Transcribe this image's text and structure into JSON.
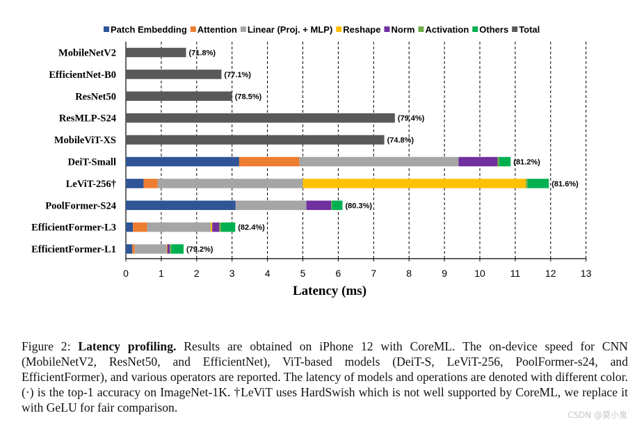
{
  "chart_data": {
    "type": "bar",
    "orientation": "horizontal",
    "stacked": true,
    "xlabel": "Latency (ms)",
    "xlim": [
      0,
      13
    ],
    "xticks": [
      0,
      1,
      2,
      3,
      4,
      5,
      6,
      7,
      8,
      9,
      10,
      11,
      12,
      13
    ],
    "grid": "vertical dashed at each 1 ms",
    "legend_position": "top",
    "legend": [
      {
        "name": "Patch Embedding",
        "color": "#2f5597"
      },
      {
        "name": "Attention",
        "color": "#ed7d31"
      },
      {
        "name": "Linear (Proj. + MLP)",
        "color": "#a5a5a5"
      },
      {
        "name": "Reshape",
        "color": "#ffc000"
      },
      {
        "name": "Norm",
        "color": "#7030a0"
      },
      {
        "name": "Activation",
        "color": "#70ad47"
      },
      {
        "name": "Others",
        "color": "#00b050"
      },
      {
        "name": "Total",
        "color": "#595959"
      }
    ],
    "categories": [
      "MobileNetV2",
      "EfficientNet-B0",
      "ResNet50",
      "ResMLP-S24",
      "MobileViT-XS",
      "DeiT-Small",
      "LeViT-256†",
      "PoolFormer-S24",
      "EfficientFormer-L3",
      "EfficientFormer-L1"
    ],
    "accuracy_labels": [
      "(71.8%)",
      "(77.1%)",
      "(78.5%)",
      "(79.4%)",
      "(74.8%)",
      "(81.2%)",
      "(81.6%)",
      "(80.3%)",
      "(82.4%)",
      "(79.2%)"
    ],
    "series": [
      {
        "name": "Patch Embedding",
        "values": [
          0,
          0,
          0,
          0,
          0,
          3.2,
          0.5,
          3.1,
          0.2,
          0.18
        ]
      },
      {
        "name": "Attention",
        "values": [
          0,
          0,
          0,
          0,
          0,
          1.7,
          0.4,
          0,
          0.4,
          0.07
        ]
      },
      {
        "name": "Linear (Proj. + MLP)",
        "values": [
          0,
          0,
          0,
          0,
          0,
          4.5,
          4.1,
          2.0,
          1.8,
          0.9
        ]
      },
      {
        "name": "Reshape",
        "values": [
          0,
          0,
          0,
          0,
          0,
          0,
          6.3,
          0,
          0.04,
          0.02
        ]
      },
      {
        "name": "Norm",
        "values": [
          0,
          0,
          0,
          0,
          0,
          1.1,
          0,
          0.7,
          0.2,
          0.07
        ]
      },
      {
        "name": "Activation",
        "values": [
          0,
          0,
          0,
          0,
          0,
          0.05,
          0.05,
          0.02,
          0.05,
          0.04
        ]
      },
      {
        "name": "Others",
        "values": [
          0,
          0,
          0,
          0,
          0,
          0.32,
          0.6,
          0.3,
          0.4,
          0.35
        ]
      },
      {
        "name": "Total",
        "values": [
          1.7,
          2.7,
          3.0,
          7.6,
          7.3,
          0,
          0,
          0,
          0,
          0
        ]
      }
    ]
  },
  "caption": {
    "label": "Figure 2:",
    "title": "Latency profiling.",
    "text": "Results are obtained on iPhone 12 with CoreML. The on-device speed for CNN (MobileNetV2, ResNet50, and EfficientNet), ViT-based models (DeiT-S, LeViT-256, PoolFormer-s24, and EfficientFormer), and various operators are reported. The latency of models and operations are denoted with different color. (·) is the top-1 accuracy on ImageNet-1K. †LeViT uses HardSwish which is not well supported by CoreML, we replace it with GeLU for fair comparison."
  },
  "watermark": "CSDN @莫小鬼"
}
